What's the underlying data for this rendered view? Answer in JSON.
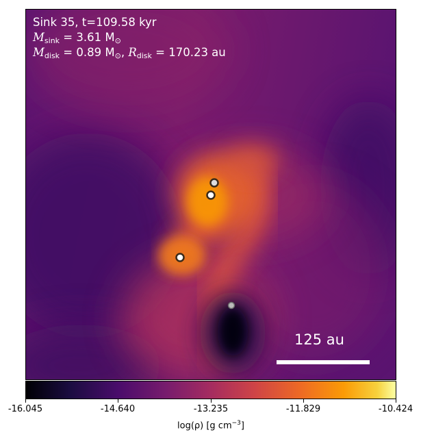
{
  "annotation": {
    "line1": "Sink 35, t=109.58 kyr",
    "msink_prefix": "M",
    "msink_sub": "sink",
    "msink_value": " = 3.61 M",
    "msink_unit_sub": "⊙",
    "mdisk_prefix": "M",
    "mdisk_sub": "disk",
    "mdisk_value": " = 0.89 M",
    "mdisk_unit_sub": "⊙",
    "rdisk_sep": ", ",
    "rdisk_prefix": "R",
    "rdisk_sub": "disk",
    "rdisk_value": " = 170.23 au"
  },
  "scale_bar": {
    "label": "125 au"
  },
  "colorbar": {
    "ticks": [
      "-16.045",
      "-14.640",
      "-13.235",
      "-11.829",
      "-10.424"
    ],
    "label_main": "log(ρ) [g cm",
    "label_exp": "−3",
    "label_end": "]",
    "colormap": "inferno"
  },
  "sinks": [
    {
      "name": "sink-1",
      "color": "#ffffff"
    },
    {
      "name": "sink-2",
      "color": "#ffffff"
    },
    {
      "name": "sink-3",
      "color": "#ffffff"
    },
    {
      "name": "sink-4",
      "color": "#cccccc"
    }
  ]
}
